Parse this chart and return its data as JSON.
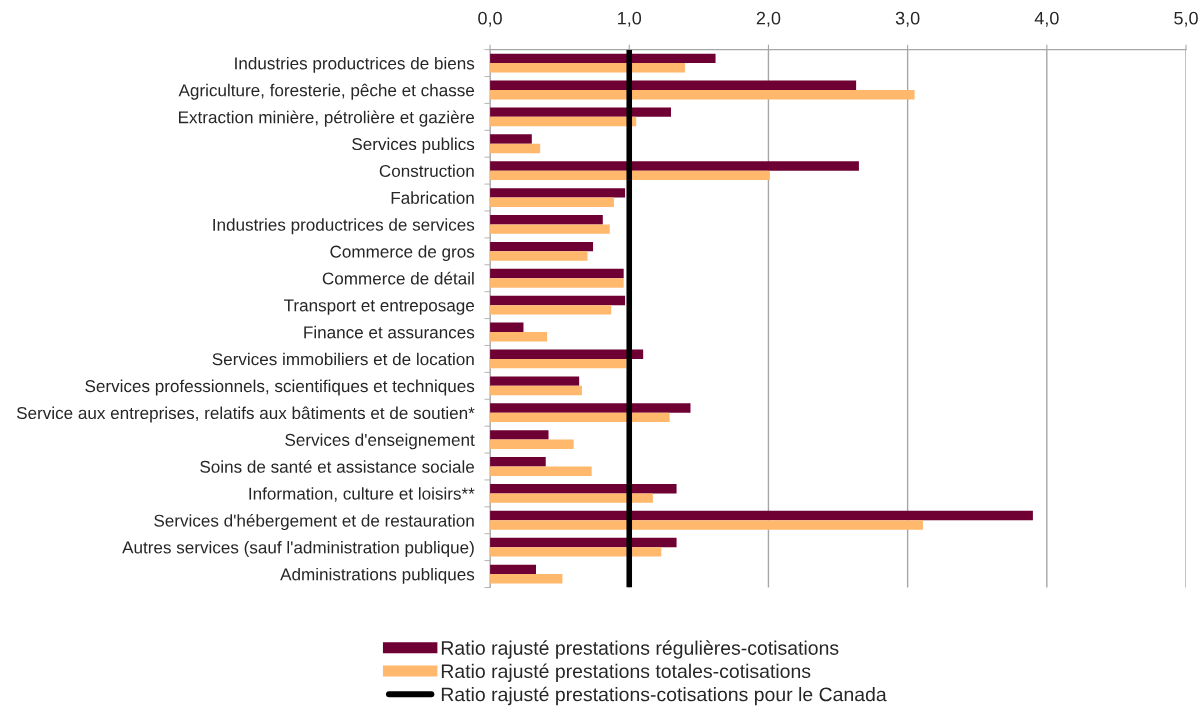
{
  "chart_data": {
    "type": "bar",
    "orientation": "horizontal",
    "categories": [
      "Industries productrices de biens",
      "Agriculture, foresterie, pêche et chasse",
      "Extraction minière, pétrolière et gazière",
      "Services publics",
      "Construction",
      "Fabrication",
      "Industries productrices de services",
      "Commerce de gros",
      "Commerce de détail",
      "Transport et entreposage",
      "Finance et assurances",
      "Services immobiliers et de location",
      "Services professionnels, scientifiques et techniques",
      "Service aux entreprises, relatifs aux bâtiments et de soutien*",
      "Services d'enseignement",
      "Soins de santé et assistance sociale",
      "Information, culture et loisirs**",
      "Services d'hébergement et de restauration",
      "Autres services (sauf l'administration publique)",
      "Administrations publiques"
    ],
    "series": [
      {
        "name": "Ratio rajusté prestations régulières-cotisations",
        "color": "#6e0033",
        "values": [
          1.62,
          2.63,
          1.3,
          0.3,
          2.65,
          0.97,
          0.81,
          0.74,
          0.96,
          0.97,
          0.24,
          1.1,
          0.64,
          1.44,
          0.42,
          0.4,
          1.34,
          3.9,
          1.34,
          0.33
        ]
      },
      {
        "name": "Ratio rajusté prestations totales-cotisations",
        "color": "#ffb86c",
        "values": [
          1.4,
          3.05,
          1.05,
          0.36,
          2.01,
          0.89,
          0.86,
          0.7,
          0.96,
          0.87,
          0.41,
          0.98,
          0.66,
          1.29,
          0.6,
          0.73,
          1.17,
          3.11,
          1.23,
          0.52
        ]
      }
    ],
    "xlim": [
      0,
      5
    ],
    "xticks": [
      {
        "value": 0,
        "label": "0,0"
      },
      {
        "value": 1,
        "label": "1,0"
      },
      {
        "value": 2,
        "label": "2,0"
      },
      {
        "value": 3,
        "label": "3,0"
      },
      {
        "value": 4,
        "label": "4,0"
      },
      {
        "value": 5,
        "label": "5,0"
      }
    ],
    "ref_lines": [
      {
        "axis": "x",
        "value": 1.0,
        "label": "Ratio rajusté prestations-cotisations pour le Canada",
        "color": "#000000"
      }
    ],
    "grid": "x",
    "legend": "bottom"
  }
}
